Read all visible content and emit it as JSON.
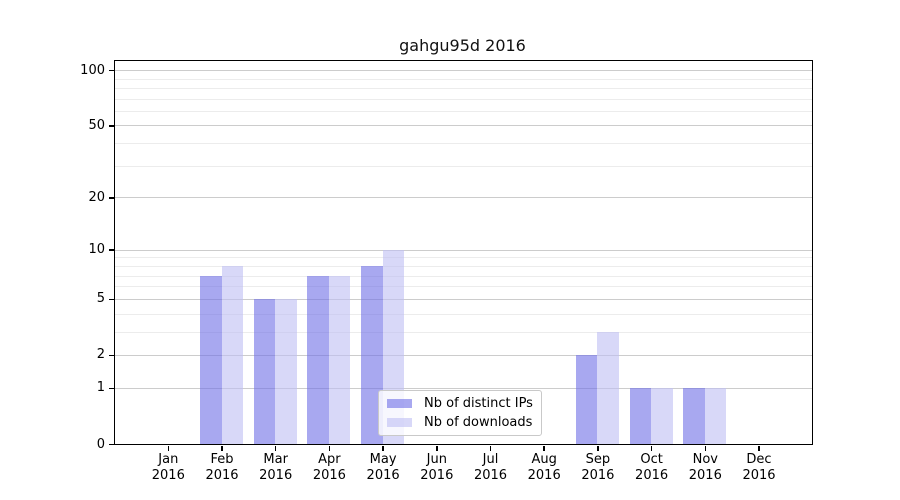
{
  "chart_data": {
    "type": "bar",
    "title": "gahgu95d 2016",
    "categories": [
      "Jan",
      "Feb",
      "Mar",
      "Apr",
      "May",
      "Jun",
      "Jul",
      "Aug",
      "Sep",
      "Oct",
      "Nov",
      "Dec"
    ],
    "category_year": "2016",
    "series": [
      {
        "name": "Nb of distinct IPs",
        "color_hex": "#6e6ee6",
        "alpha": 0.6,
        "values": [
          0,
          7,
          5,
          7,
          8,
          0,
          0,
          0,
          2,
          1,
          1,
          0
        ]
      },
      {
        "name": "Nb of downloads",
        "color_hex": "#bebef3",
        "alpha": 0.6,
        "values": [
          0,
          8,
          5,
          7,
          10,
          0,
          0,
          0,
          3,
          1,
          1,
          0
        ]
      }
    ],
    "xlabel": "",
    "ylabel": "",
    "yaxis": {
      "scale": "log1p",
      "major_ticks": [
        0,
        1,
        2,
        5,
        10,
        20,
        50,
        100
      ],
      "minor_gridlines": [
        3,
        4,
        6,
        7,
        8,
        9,
        30,
        40,
        60,
        70,
        80,
        90
      ],
      "ylim": [
        0,
        112
      ]
    },
    "grid": {
      "major_color": "#cccccc",
      "minor_color": "#ececec",
      "horizontal_only": true
    },
    "legend": {
      "position": "lower-center",
      "entries": [
        "Nb of distinct IPs",
        "Nb of downloads"
      ]
    },
    "spine_color": "#000000"
  }
}
